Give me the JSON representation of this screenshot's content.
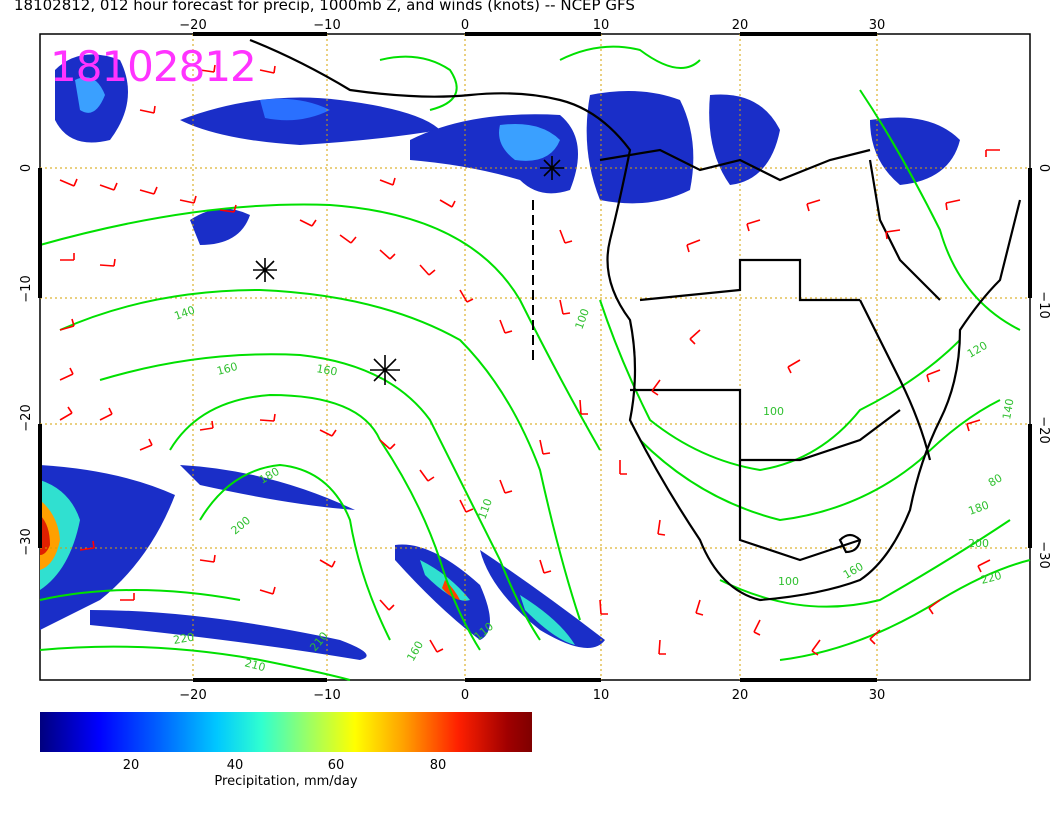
{
  "title": "18102812, 012 hour forecast for precip, 1000mb Z, and winds (knots) -- NCEP GFS",
  "stamp": "18102812",
  "axes": {
    "lon_ticks": [
      "−20",
      "−10",
      "0",
      "10",
      "20",
      "30"
    ],
    "lat_ticks": [
      "0",
      "−10",
      "−20",
      "−30"
    ],
    "lon_range": [
      -30,
      40
    ],
    "lat_range": [
      -40,
      10
    ]
  },
  "contour_labels": [
    "140",
    "160",
    "160",
    "180",
    "200",
    "220",
    "210",
    "100",
    "100",
    "110",
    "120",
    "140",
    "180",
    "200",
    "220",
    "100",
    "160",
    "110",
    "160",
    "80",
    "210"
  ],
  "colorbar": {
    "ticks": [
      "20",
      "40",
      "60",
      "80"
    ],
    "title": "Precipitation, mm/day"
  },
  "colors": {
    "contour": "#00e000",
    "barb": "#ff0000",
    "stamp": "#ff33ff",
    "grid": "#d4a000"
  }
}
